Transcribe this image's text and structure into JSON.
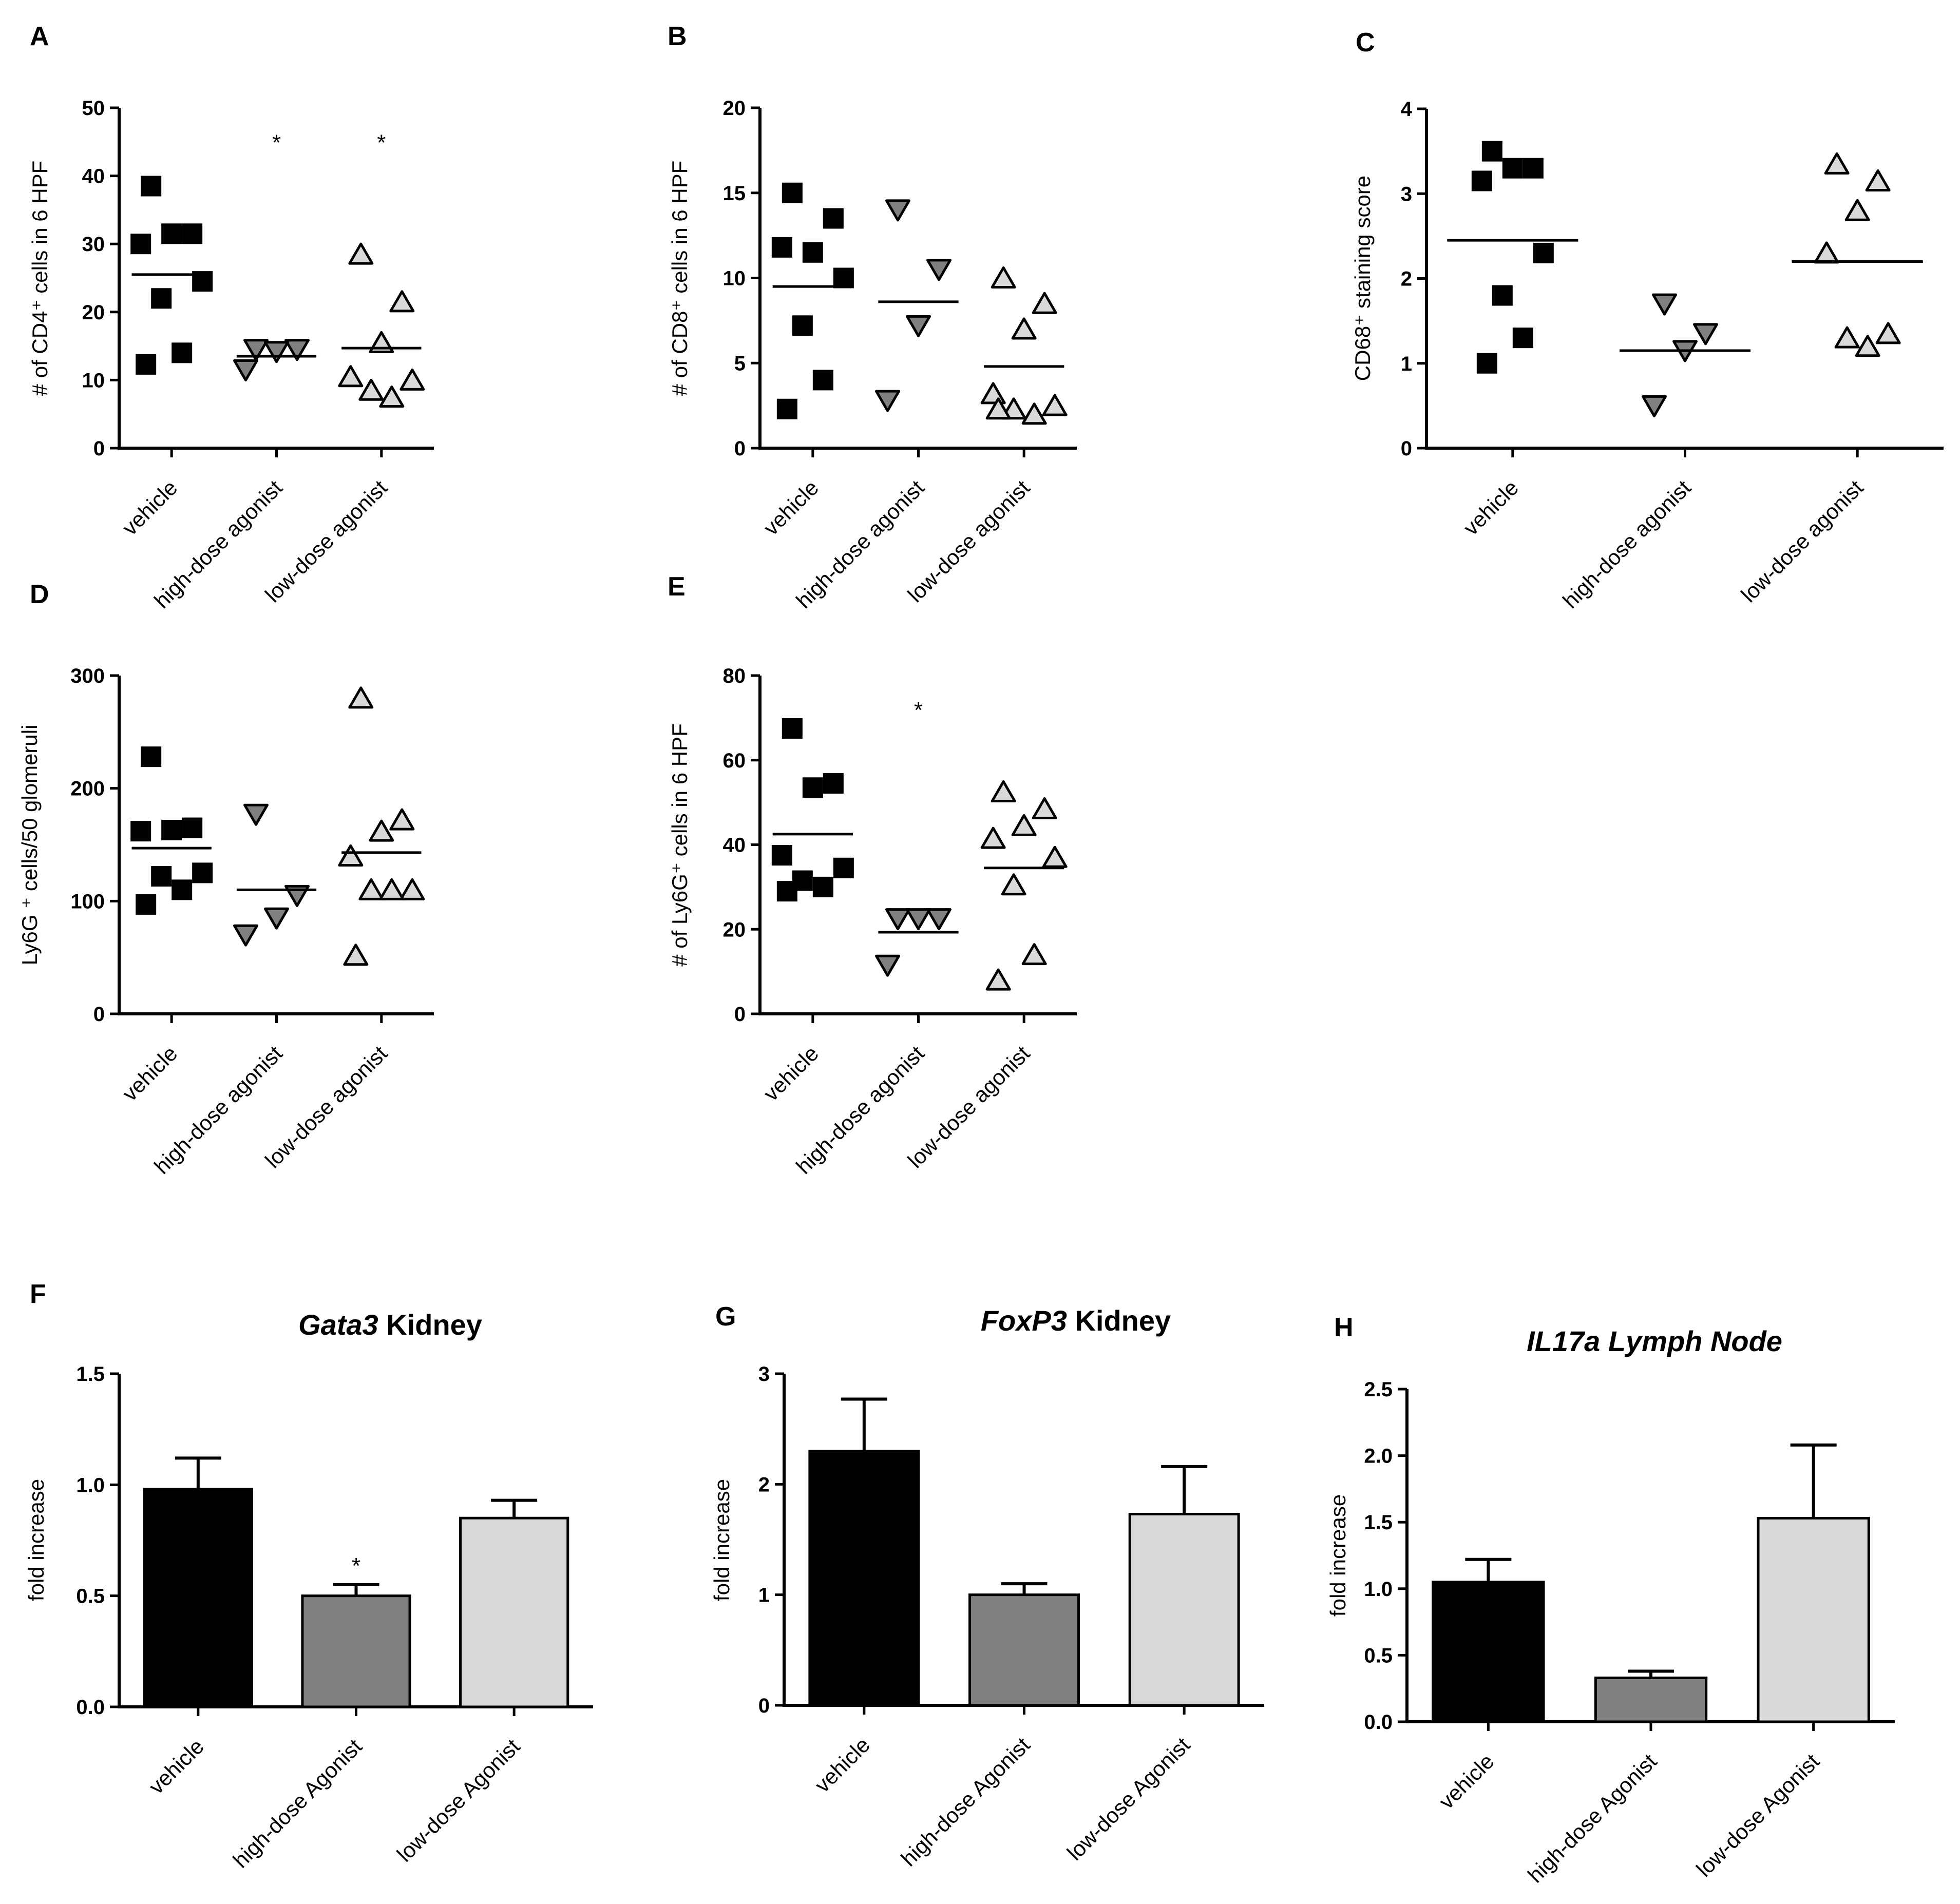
{
  "chart_data": [
    {
      "id": "A",
      "panel_label": "A",
      "type": "scatter",
      "categories": [
        "vehicle",
        "high-dose agonist",
        "low-dose agonist"
      ],
      "markers": [
        "square",
        "triangle-down",
        "triangle-up"
      ],
      "marker_colors": [
        "#000000",
        "#808080",
        "#d9d9d9"
      ],
      "ylabel": "# of CD4⁺ cells in 6 HPF",
      "ylim": [
        0,
        50
      ],
      "yticks": [
        0,
        10,
        20,
        30,
        40,
        50
      ],
      "ytick_labels": [
        "0",
        "10",
        "20",
        "30",
        "40",
        "50"
      ],
      "points": [
        [
          38.5,
          31.5,
          31.5,
          30,
          24.5,
          22,
          14,
          12.3
        ],
        [
          14.5,
          14.5,
          14.2,
          11.5
        ],
        [
          28.5,
          21.5,
          15.5,
          10.5,
          10,
          8.5,
          7.5
        ]
      ],
      "means": [
        25.5,
        13.5,
        14.7
      ],
      "significance": [
        "",
        "*",
        "*"
      ]
    },
    {
      "id": "B",
      "panel_label": "B",
      "type": "scatter",
      "categories": [
        "vehicle",
        "high-dose agonist",
        "low-dose agonist"
      ],
      "markers": [
        "square",
        "triangle-down",
        "triangle-up"
      ],
      "marker_colors": [
        "#000000",
        "#808080",
        "#d9d9d9"
      ],
      "ylabel": "# of CD8⁺ cells in 6 HPF",
      "ylim": [
        0,
        20
      ],
      "yticks": [
        0,
        5,
        10,
        15,
        20
      ],
      "ytick_labels": [
        "0",
        "5",
        "10",
        "15",
        "20"
      ],
      "points": [
        [
          15,
          13.5,
          11.5,
          11.8,
          10,
          7.2,
          4,
          2.3
        ],
        [
          14,
          10.5,
          7.2,
          2.8
        ],
        [
          10,
          8.5,
          7,
          3.2,
          2.5,
          2.3,
          2,
          2.3
        ]
      ],
      "means": [
        9.5,
        8.6,
        4.8
      ],
      "significance": [
        "",
        "",
        ""
      ]
    },
    {
      "id": "C",
      "panel_label": "C",
      "type": "scatter",
      "categories": [
        "vehicle",
        "high-dose agonist",
        "low-dose agonist"
      ],
      "markers": [
        "square",
        "triangle-down",
        "triangle-up"
      ],
      "marker_colors": [
        "#000000",
        "#808080",
        "#d9d9d9"
      ],
      "ylabel": "CD68⁺ staining score",
      "ylim": [
        0,
        4
      ],
      "yticks": [
        0,
        1,
        2,
        3,
        4
      ],
      "ytick_labels": [
        "0",
        "1",
        "2",
        "3",
        "4"
      ],
      "points": [
        [
          3.5,
          3.3,
          3.3,
          3.15,
          2.3,
          1.8,
          1.3,
          1
        ],
        [
          1.7,
          1.35,
          1.15,
          0.5
        ],
        [
          3.35,
          3.15,
          2.8,
          2.3,
          1.35,
          1.3,
          1.2
        ]
      ],
      "means": [
        2.45,
        1.15,
        2.2
      ],
      "significance": [
        "",
        "",
        ""
      ]
    },
    {
      "id": "D",
      "panel_label": "D",
      "type": "scatter",
      "categories": [
        "vehicle",
        "high-dose agonist",
        "low-dose agonist"
      ],
      "markers": [
        "square",
        "triangle-down",
        "triangle-up"
      ],
      "marker_colors": [
        "#000000",
        "#808080",
        "#d9d9d9"
      ],
      "ylabel": "Ly6G ⁺ cells/50 glomeruli",
      "ylim": [
        0,
        300
      ],
      "yticks": [
        0,
        100,
        200,
        300
      ],
      "ytick_labels": [
        "0",
        "100",
        "200",
        "300"
      ],
      "points": [
        [
          228,
          165,
          163,
          162,
          125,
          122,
          110,
          97
        ],
        [
          177,
          105,
          85,
          70
        ],
        [
          280,
          172,
          162,
          140,
          110,
          110,
          110,
          52
        ]
      ],
      "means": [
        147,
        110,
        143
      ],
      "significance": [
        "",
        "",
        ""
      ]
    },
    {
      "id": "E",
      "panel_label": "E",
      "type": "scatter",
      "categories": [
        "vehicle",
        "high-dose agonist",
        "low-dose agonist"
      ],
      "markers": [
        "square",
        "triangle-down",
        "triangle-up"
      ],
      "marker_colors": [
        "#000000",
        "#808080",
        "#d9d9d9"
      ],
      "ylabel": "# of Ly6G⁺ cells in 6 HPF",
      "ylim": [
        0,
        80
      ],
      "yticks": [
        0,
        20,
        40,
        60,
        80
      ],
      "ytick_labels": [
        "0",
        "20",
        "40",
        "60",
        "80"
      ],
      "points": [
        [
          67.5,
          54.5,
          53.5,
          37.5,
          34.5,
          31.5,
          30,
          29
        ],
        [
          22.5,
          22.5,
          22.5,
          11.5
        ],
        [
          52.5,
          48.5,
          44.5,
          41.5,
          37,
          30.5,
          14,
          8
        ]
      ],
      "means": [
        42.5,
        19.3,
        34.5
      ],
      "significance": [
        "",
        "*",
        ""
      ]
    },
    {
      "id": "F",
      "panel_label": "F",
      "type": "bar",
      "title_gene": "Gata3",
      "title_rest": " Kidney",
      "categories": [
        "vehicle",
        "high-dose Agonist",
        "low-dose Agonist"
      ],
      "colors": [
        "#000000",
        "#808080",
        "#d9d9d9"
      ],
      "ylabel": "fold increase",
      "ylim": [
        0,
        1.5
      ],
      "yticks": [
        0,
        0.5,
        1.0,
        1.5
      ],
      "ytick_labels": [
        "0.0",
        "0.5",
        "1.0",
        "1.5"
      ],
      "values": [
        0.98,
        0.5,
        0.85
      ],
      "errors": [
        0.14,
        0.05,
        0.08
      ],
      "significance": [
        "",
        "*",
        ""
      ]
    },
    {
      "id": "G",
      "panel_label": "G",
      "type": "bar",
      "title_gene": "FoxP3",
      "title_rest": " Kidney",
      "categories": [
        "vehicle",
        "high-dose Agonist",
        "low-dose Agonist"
      ],
      "colors": [
        "#000000",
        "#808080",
        "#d9d9d9"
      ],
      "ylabel": "fold increase",
      "ylim": [
        0,
        3
      ],
      "yticks": [
        0,
        1,
        2,
        3
      ],
      "ytick_labels": [
        "0",
        "1",
        "2",
        "3"
      ],
      "values": [
        2.3,
        1.0,
        1.73
      ],
      "errors": [
        0.47,
        0.1,
        0.43
      ],
      "significance": [
        "",
        "",
        ""
      ]
    },
    {
      "id": "H",
      "panel_label": "H",
      "type": "bar",
      "title_gene": "IL17a Lymph Node",
      "title_rest": "",
      "categories": [
        "vehicle",
        "high-dose Agonist",
        "low-dose Agonist"
      ],
      "colors": [
        "#000000",
        "#808080",
        "#d9d9d9"
      ],
      "ylabel": "fold increase",
      "ylim": [
        0,
        2.5
      ],
      "yticks": [
        0,
        0.5,
        1.0,
        1.5,
        2.0,
        2.5
      ],
      "ytick_labels": [
        "0.0",
        "0.5",
        "1.0",
        "1.5",
        "2.0",
        "2.5"
      ],
      "values": [
        1.05,
        0.33,
        1.53
      ],
      "errors": [
        0.17,
        0.05,
        0.55
      ],
      "significance": [
        "",
        "",
        ""
      ]
    }
  ]
}
